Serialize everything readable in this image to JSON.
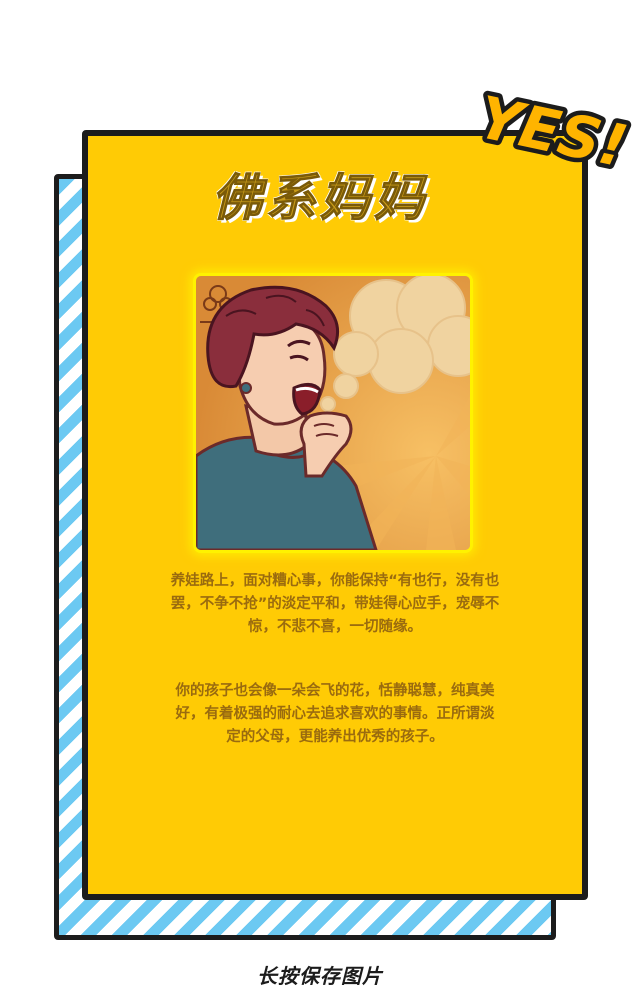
{
  "card": {
    "title": "佛系妈妈",
    "badge": "YES!",
    "illustration": "retro-woman-laughing",
    "paragraphs": [
      "养娃路上，面对糟心事，你能保持“有也行，没有也罢，不争不抢”的淡定平和，带娃得心应手，宠辱不惊，不悲不喜，一切随缘。",
      "你的孩子也会像一朵会飞的花，恬静聪慧，纯真美好，有着极强的耐心去追求喜欢的事情。正所谓淡定的父母，更能养出优秀的孩子。"
    ]
  },
  "footer": {
    "save_label": "长按保存图片"
  },
  "colors": {
    "card_yellow": "#ffcb05",
    "stripe_blue": "#6cc9f2",
    "border_dark": "#1c1c1c",
    "text_brown": "#9a6b0f",
    "badge_orange": "#ffb400"
  }
}
